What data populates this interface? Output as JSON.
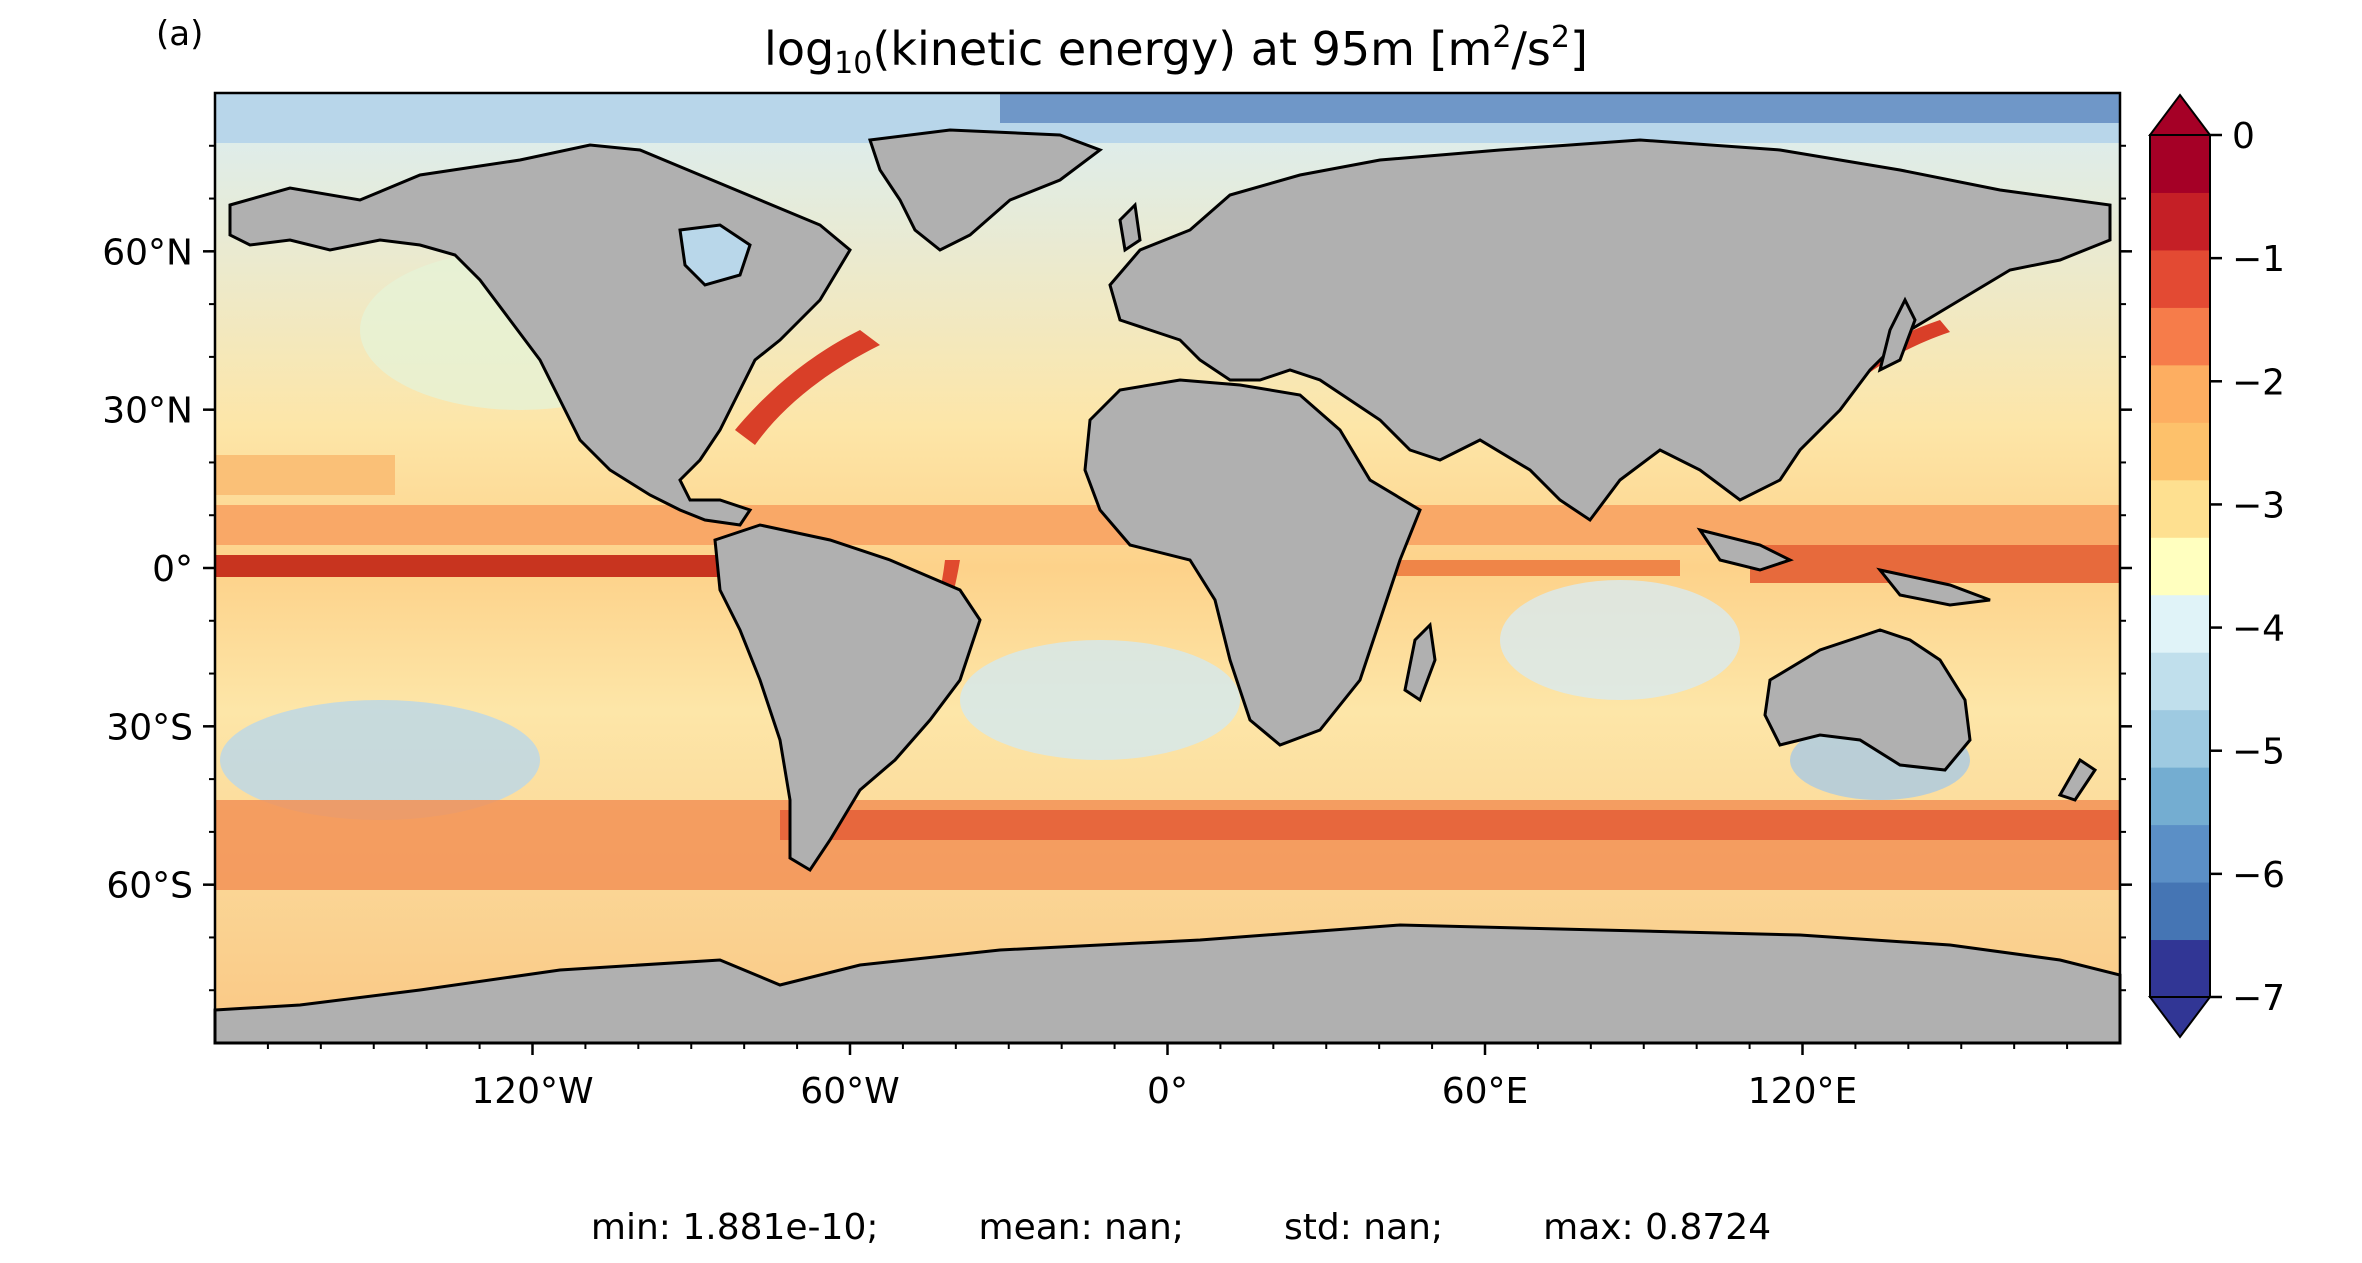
{
  "panel_label": "(a)",
  "title": {
    "prefix": "log",
    "subscript": "10",
    "middle": "(kinetic energy) at 95m [m",
    "superscript1": "2",
    "between": "/s",
    "superscript2": "2",
    "suffix": "]"
  },
  "map": {
    "projection": "PlateCarree",
    "lon_range": [
      -180,
      180
    ],
    "lat_range": [
      -90,
      90
    ],
    "land_color": "#b0b0b0",
    "coastline_color": "#000000",
    "lat_ticks": [
      {
        "value": 60,
        "label": "60°N"
      },
      {
        "value": 30,
        "label": "30°N"
      },
      {
        "value": 0,
        "label": "0°"
      },
      {
        "value": -30,
        "label": "30°S"
      },
      {
        "value": -60,
        "label": "60°S"
      }
    ],
    "lon_ticks": [
      {
        "value": -120,
        "label": "120°W"
      },
      {
        "value": -60,
        "label": "60°W"
      },
      {
        "value": 0,
        "label": "0°"
      },
      {
        "value": 60,
        "label": "60°E"
      },
      {
        "value": 120,
        "label": "120°E"
      }
    ]
  },
  "colorbar": {
    "min": -7,
    "max": 0,
    "extend": "both",
    "tick_labels": [
      {
        "value": 0,
        "label": "0"
      },
      {
        "value": -1,
        "label": "−1"
      },
      {
        "value": -2,
        "label": "−2"
      },
      {
        "value": -3,
        "label": "−3"
      },
      {
        "value": -4,
        "label": "−4"
      },
      {
        "value": -5,
        "label": "−5"
      },
      {
        "value": -6,
        "label": "−6"
      },
      {
        "value": -7,
        "label": "−7"
      }
    ],
    "colors_low_to_high": [
      "#313695",
      "#4575b4",
      "#5b8fc6",
      "#74add1",
      "#9ecae1",
      "#c0dfec",
      "#e0f3f8",
      "#ffffbf",
      "#fee090",
      "#fdc16b",
      "#fdae61",
      "#f67c4a",
      "#e34a33",
      "#c51f26",
      "#a50026"
    ]
  },
  "stats": {
    "min": "min: 1.881e-10;",
    "mean": "mean: nan;",
    "std": "std: nan;",
    "max": "max: 0.8724"
  }
}
